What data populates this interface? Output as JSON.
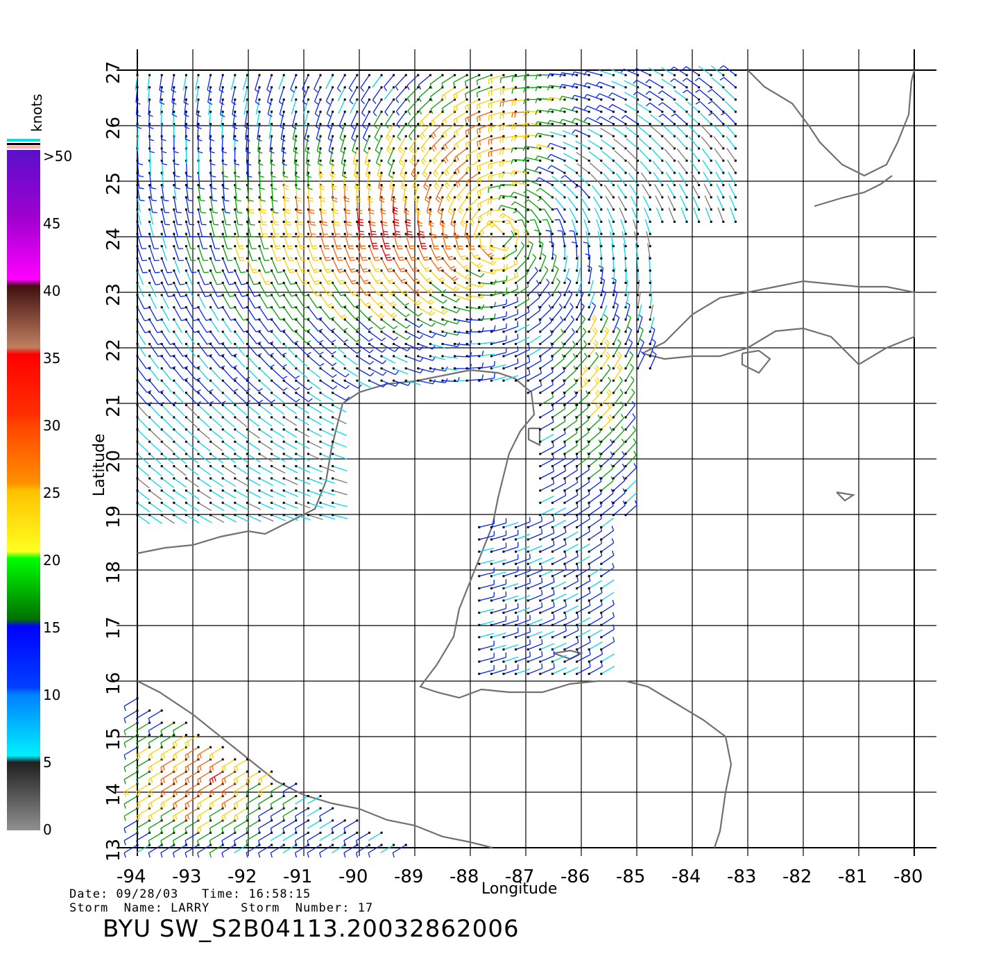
{
  "map": {
    "x_axis_label": "Longitude",
    "y_axis_label": "Latitude",
    "lon_ticks": [
      "-94",
      "-93",
      "-92",
      "-91",
      "-90",
      "-89",
      "-88",
      "-87",
      "-86",
      "-85",
      "-84",
      "-83",
      "-82",
      "-81",
      "-80"
    ],
    "lat_ticks": [
      "13",
      "14",
      "15",
      "16",
      "17",
      "18",
      "19",
      "20",
      "21",
      "22",
      "23",
      "24",
      "25",
      "26",
      "27"
    ],
    "lon_range": [
      -94,
      -80
    ],
    "lat_range": [
      13,
      27
    ]
  },
  "colorbar": {
    "title": "knots",
    "labels": [
      ">50",
      "45",
      "40",
      "35",
      "30",
      "25",
      "20",
      "15",
      "10",
      "5",
      "0"
    ]
  },
  "info": {
    "date_line": "Date: 09/28/03   Time: 16:58:15",
    "storm_line": "Storm  Name: LARRY    Storm  Number: 17",
    "product": "BYU  SW_S2B04113.20032862006"
  },
  "colors": {
    "coast": "#707070",
    "grid": "#000000",
    "speed_0_5": "#777777",
    "speed_5_10": "#00d8f0",
    "speed_10_15": "#0020ff",
    "speed_15_20": "#00a000",
    "speed_20_25": "#ffd000",
    "speed_25_30": "#ff6000",
    "speed_30_35": "#e00000"
  }
}
